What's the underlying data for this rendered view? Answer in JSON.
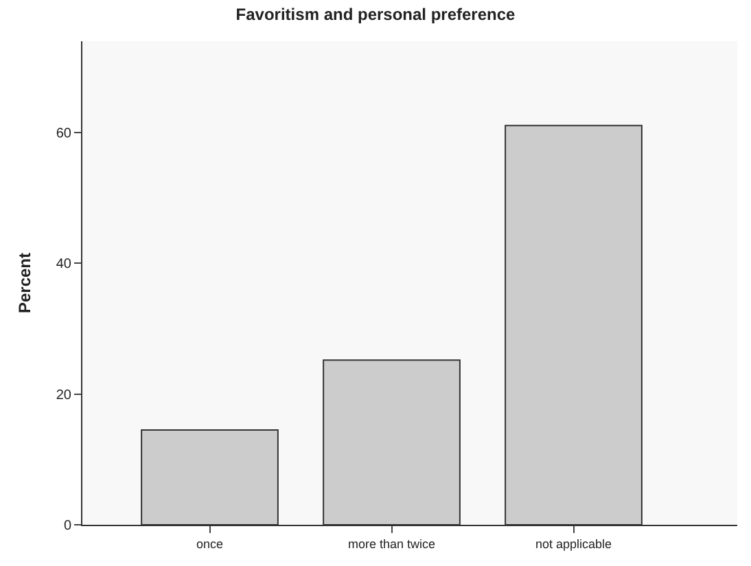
{
  "chart_data": {
    "type": "bar",
    "title": "Favoritism and personal preference",
    "ylabel": "Percent",
    "categories": [
      "once",
      "more than twice",
      "not applicable"
    ],
    "values": [
      14.5,
      25.2,
      61.1
    ],
    "color": "#cccccc",
    "ylim": [
      0,
      74
    ],
    "yticks": [
      0,
      20,
      40,
      60
    ],
    "grid": false
  }
}
